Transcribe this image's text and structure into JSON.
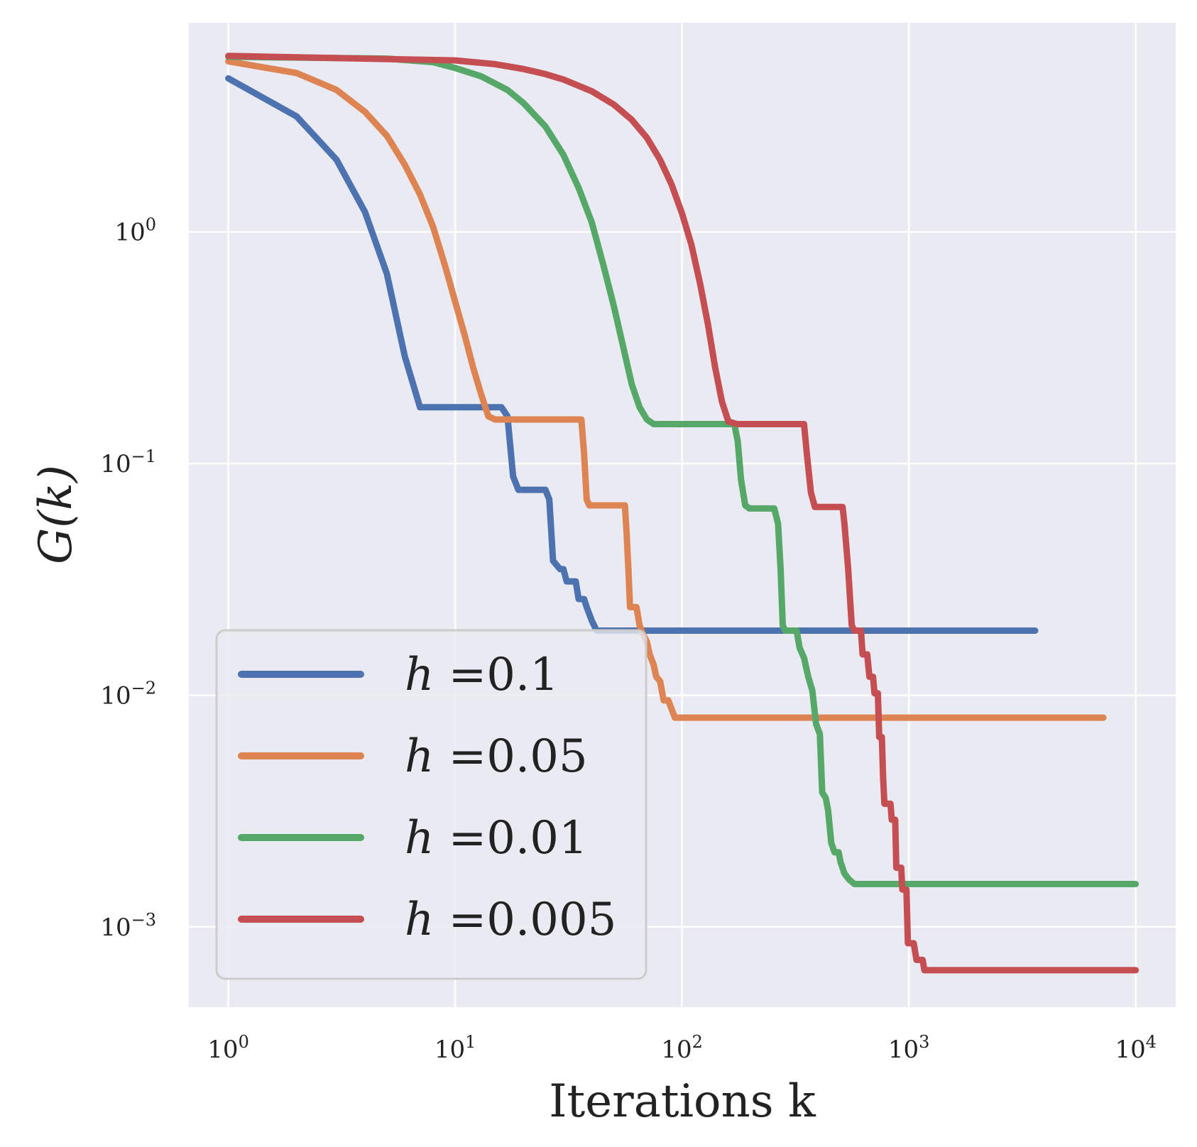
{
  "chart_data": {
    "type": "line",
    "title": "",
    "xlabel": "Iterations k",
    "ylabel": "G(k)",
    "x_scale": "log",
    "y_scale": "log",
    "xlim": [
      0.67,
      15000
    ],
    "ylim": [
      0.00045,
      8.0
    ],
    "grid": true,
    "background_color": "#eaeaf2",
    "legend_position": "lower-left",
    "x_ticks": [
      {
        "value": 1,
        "base": "10",
        "exp": "0"
      },
      {
        "value": 10,
        "base": "10",
        "exp": "1"
      },
      {
        "value": 100,
        "base": "10",
        "exp": "2"
      },
      {
        "value": 1000,
        "base": "10",
        "exp": "3"
      },
      {
        "value": 10000,
        "base": "10",
        "exp": "4"
      }
    ],
    "y_ticks": [
      {
        "value": 1,
        "base": "10",
        "exp": "0"
      },
      {
        "value": 0.1,
        "base": "10",
        "exp": "−1"
      },
      {
        "value": 0.01,
        "base": "10",
        "exp": "−2"
      },
      {
        "value": 0.001,
        "base": "10",
        "exp": "−3"
      }
    ],
    "series": [
      {
        "name": "h =0.1",
        "label_var": "h",
        "label_value": "=0.1",
        "color": "#4c72b0",
        "points": [
          [
            1,
            4.6
          ],
          [
            2,
            3.15
          ],
          [
            3,
            2.05
          ],
          [
            4,
            1.22
          ],
          [
            5,
            0.66
          ],
          [
            6,
            0.29
          ],
          [
            7,
            0.175
          ],
          [
            16,
            0.175
          ],
          [
            17,
            0.16
          ],
          [
            18,
            0.088
          ],
          [
            19,
            0.077
          ],
          [
            25,
            0.077
          ],
          [
            26,
            0.07
          ],
          [
            27,
            0.038
          ],
          [
            29,
            0.035
          ],
          [
            30,
            0.035
          ],
          [
            31,
            0.031
          ],
          [
            34,
            0.031
          ],
          [
            35,
            0.026
          ],
          [
            37,
            0.026
          ],
          [
            38,
            0.024
          ],
          [
            40,
            0.021
          ],
          [
            42,
            0.019
          ],
          [
            3600,
            0.019
          ]
        ]
      },
      {
        "name": "h =0.05",
        "label_var": "h",
        "label_value": "=0.05",
        "color": "#dd8452",
        "points": [
          [
            1,
            5.45
          ],
          [
            2,
            4.85
          ],
          [
            3,
            4.1
          ],
          [
            4,
            3.3
          ],
          [
            5,
            2.6
          ],
          [
            6,
            1.95
          ],
          [
            7,
            1.45
          ],
          [
            8,
            1.05
          ],
          [
            9,
            0.72
          ],
          [
            10,
            0.5
          ],
          [
            11,
            0.36
          ],
          [
            12,
            0.26
          ],
          [
            13,
            0.2
          ],
          [
            14,
            0.16
          ],
          [
            15,
            0.155
          ],
          [
            36,
            0.155
          ],
          [
            37,
            0.11
          ],
          [
            38,
            0.07
          ],
          [
            39,
            0.066
          ],
          [
            56,
            0.066
          ],
          [
            57,
            0.05
          ],
          [
            58,
            0.035
          ],
          [
            59,
            0.024
          ],
          [
            63,
            0.024
          ],
          [
            65,
            0.02
          ],
          [
            67,
            0.0185
          ],
          [
            70,
            0.017
          ],
          [
            72,
            0.015
          ],
          [
            75,
            0.0135
          ],
          [
            77,
            0.012
          ],
          [
            80,
            0.0115
          ],
          [
            83,
            0.0095
          ],
          [
            87,
            0.0095
          ],
          [
            93,
            0.008
          ],
          [
            7200,
            0.008
          ]
        ]
      },
      {
        "name": "h =0.01",
        "label_var": "h",
        "label_value": "=0.01",
        "color": "#55a868",
        "points": [
          [
            1,
            5.7
          ],
          [
            5,
            5.6
          ],
          [
            8,
            5.4
          ],
          [
            10,
            5.1
          ],
          [
            13,
            4.7
          ],
          [
            17,
            4.1
          ],
          [
            20,
            3.6
          ],
          [
            25,
            2.85
          ],
          [
            30,
            2.15
          ],
          [
            35,
            1.55
          ],
          [
            40,
            1.1
          ],
          [
            45,
            0.72
          ],
          [
            50,
            0.48
          ],
          [
            55,
            0.32
          ],
          [
            60,
            0.22
          ],
          [
            65,
            0.175
          ],
          [
            70,
            0.155
          ],
          [
            75,
            0.148
          ],
          [
            170,
            0.148
          ],
          [
            176,
            0.125
          ],
          [
            182,
            0.085
          ],
          [
            190,
            0.066
          ],
          [
            198,
            0.064
          ],
          [
            255,
            0.064
          ],
          [
            265,
            0.055
          ],
          [
            272,
            0.035
          ],
          [
            278,
            0.02
          ],
          [
            285,
            0.019
          ],
          [
            320,
            0.019
          ],
          [
            330,
            0.016
          ],
          [
            345,
            0.0145
          ],
          [
            360,
            0.012
          ],
          [
            375,
            0.0105
          ],
          [
            390,
            0.0075
          ],
          [
            405,
            0.0068
          ],
          [
            415,
            0.0038
          ],
          [
            430,
            0.0036
          ],
          [
            440,
            0.0032
          ],
          [
            455,
            0.0023
          ],
          [
            470,
            0.0021
          ],
          [
            490,
            0.0021
          ],
          [
            500,
            0.0019
          ],
          [
            520,
            0.0017
          ],
          [
            545,
            0.0016
          ],
          [
            575,
            0.00153
          ],
          [
            10000,
            0.00153
          ]
        ]
      },
      {
        "name": "h =0.005",
        "label_var": "h",
        "label_value": "=0.005",
        "color": "#c44e52",
        "points": [
          [
            1,
            5.75
          ],
          [
            10,
            5.5
          ],
          [
            15,
            5.3
          ],
          [
            20,
            5.05
          ],
          [
            25,
            4.8
          ],
          [
            30,
            4.55
          ],
          [
            40,
            4.05
          ],
          [
            50,
            3.55
          ],
          [
            60,
            3.05
          ],
          [
            70,
            2.55
          ],
          [
            80,
            2.05
          ],
          [
            90,
            1.6
          ],
          [
            100,
            1.2
          ],
          [
            110,
            0.88
          ],
          [
            120,
            0.6
          ],
          [
            130,
            0.4
          ],
          [
            140,
            0.26
          ],
          [
            150,
            0.185
          ],
          [
            160,
            0.152
          ],
          [
            175,
            0.148
          ],
          [
            345,
            0.148
          ],
          [
            355,
            0.11
          ],
          [
            370,
            0.075
          ],
          [
            385,
            0.065
          ],
          [
            510,
            0.065
          ],
          [
            520,
            0.055
          ],
          [
            540,
            0.035
          ],
          [
            560,
            0.02
          ],
          [
            575,
            0.019
          ],
          [
            615,
            0.019
          ],
          [
            625,
            0.015
          ],
          [
            655,
            0.015
          ],
          [
            670,
            0.012
          ],
          [
            695,
            0.012
          ],
          [
            705,
            0.0102
          ],
          [
            730,
            0.0102
          ],
          [
            740,
            0.0066
          ],
          [
            760,
            0.0066
          ],
          [
            770,
            0.0044
          ],
          [
            780,
            0.0034
          ],
          [
            830,
            0.0034
          ],
          [
            840,
            0.0029
          ],
          [
            870,
            0.0029
          ],
          [
            880,
            0.0018
          ],
          [
            925,
            0.0018
          ],
          [
            935,
            0.00145
          ],
          [
            975,
            0.00145
          ],
          [
            990,
            0.00085
          ],
          [
            1050,
            0.00085
          ],
          [
            1080,
            0.00072
          ],
          [
            1150,
            0.00072
          ],
          [
            1170,
            0.00065
          ],
          [
            10000,
            0.00065
          ]
        ]
      }
    ]
  }
}
